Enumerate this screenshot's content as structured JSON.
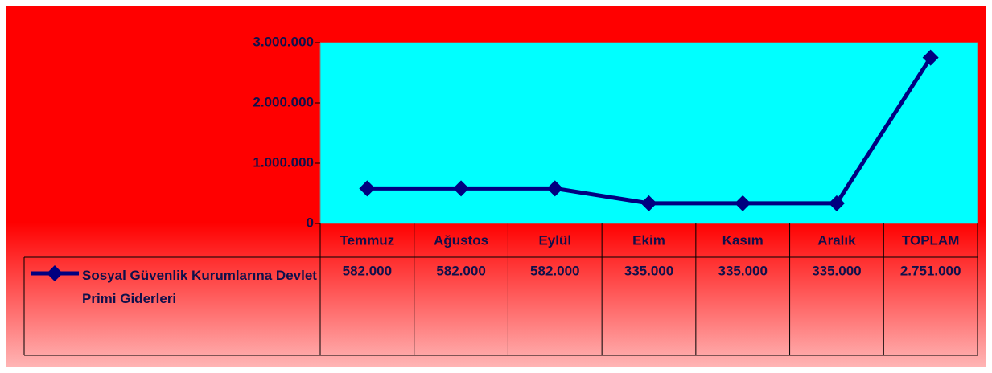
{
  "chart_data": {
    "type": "line",
    "categories": [
      "Temmuz",
      "Ağustos",
      "Eylül",
      "Ekim",
      "Kasım",
      "Aralık",
      "TOPLAM"
    ],
    "series": [
      {
        "name": "Sosyal Güvenlik Kurumlarına Devlet Primi Giderleri",
        "color": "#000080",
        "values": [
          582000,
          582000,
          582000,
          335000,
          335000,
          335000,
          2751000
        ],
        "value_labels": [
          "582.000",
          "582.000",
          "582.000",
          "335.000",
          "335.000",
          "335.000",
          "2.751.000"
        ]
      }
    ],
    "ylim": [
      0,
      3000000
    ],
    "yticks": [
      {
        "value": 0,
        "label": "0"
      },
      {
        "value": 1000000,
        "label": "1.000.000"
      },
      {
        "value": 2000000,
        "label": "2.000.000"
      },
      {
        "value": 3000000,
        "label": "3.000.000"
      }
    ],
    "grid": false,
    "data_table": true
  }
}
